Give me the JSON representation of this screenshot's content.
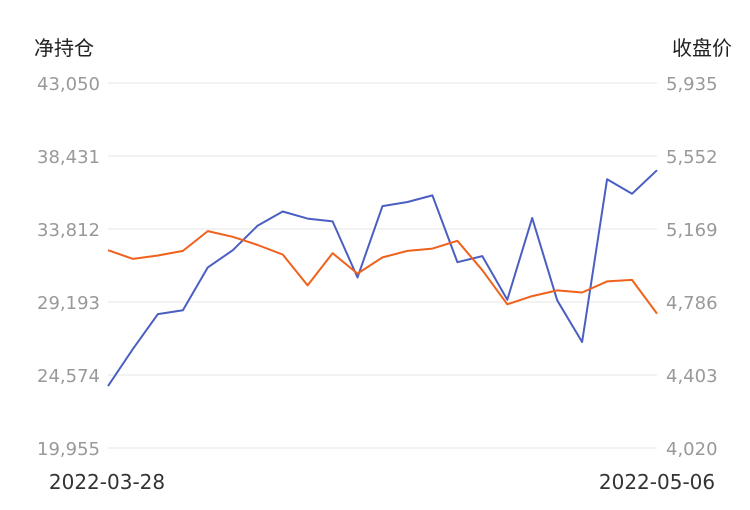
{
  "chart_data": {
    "type": "line",
    "left_axis_title": "净持仓",
    "right_axis_title": "收盘价",
    "left_ticks": [
      "43,050",
      "38,431",
      "33,812",
      "29,193",
      "24,574",
      "19,955"
    ],
    "right_ticks": [
      "5,935",
      "5,552",
      "5,169",
      "4,786",
      "4,403",
      "4,020"
    ],
    "ylim_left": [
      19955,
      43050
    ],
    "ylim_right": [
      4020,
      5935
    ],
    "x_start_label": "2022-03-28",
    "x_end_label": "2022-05-06",
    "grid": true,
    "legend": "none",
    "series": [
      {
        "axis": "left",
        "color": "#4a5fc1",
        "values": [
          23870,
          26230,
          28430,
          28670,
          31380,
          32470,
          34030,
          34920,
          34470,
          34290,
          30750,
          35260,
          35520,
          35940,
          31710,
          32100,
          29340,
          34510,
          29300,
          26660,
          36960,
          36040,
          37530
        ]
      },
      {
        "axis": "right",
        "color": "#f0611c",
        "values": [
          5058,
          5012,
          5030,
          5054,
          5158,
          5128,
          5085,
          5035,
          4873,
          5042,
          4935,
          5020,
          5054,
          5066,
          5107,
          4953,
          4774,
          4817,
          4847,
          4836,
          4894,
          4902,
          4725
        ]
      }
    ]
  }
}
